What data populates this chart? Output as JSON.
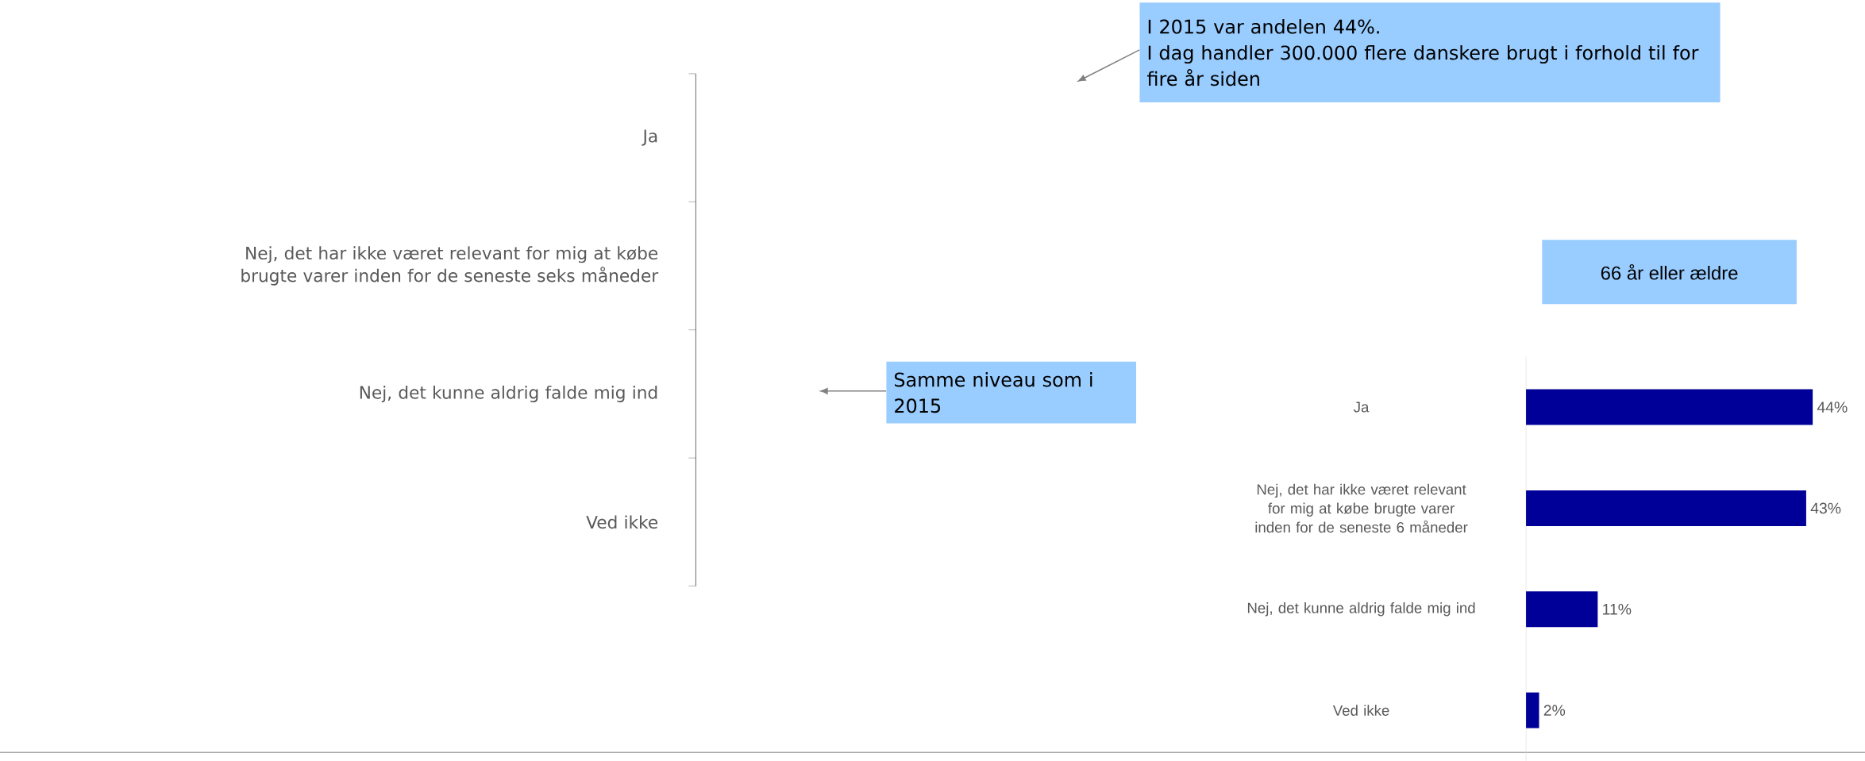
{
  "chart_data": [
    {
      "type": "other",
      "categories": [
        "Ja",
        "Nej, det har ikke været relevant for mig at købe brugte varer inden for de seneste seks måneder",
        "Nej, det kunne aldrig falde mig ind",
        "Ved ikke"
      ],
      "annotations": [
        "I 2015 var andelen 44%.",
        "I dag handler 300.000 flere danskere brugt i forhold til for fire år siden",
        "Samme niveau som i 2015"
      ]
    },
    {
      "type": "bar",
      "orientation": "horizontal",
      "tick_labels": "y",
      "title": "66 år eller ældre",
      "categories": [
        "Ja",
        "Nej, det har ikke været relevant for mig at købe brugte varer inden for de seneste 6 måneder",
        "Nej, det kunne aldrig falde mig ind",
        "Ved ikke"
      ],
      "values": [
        44,
        43,
        11,
        2
      ],
      "value_labels": [
        "44%",
        "43%",
        "11%",
        "2%"
      ],
      "color": "#000099"
    }
  ]
}
